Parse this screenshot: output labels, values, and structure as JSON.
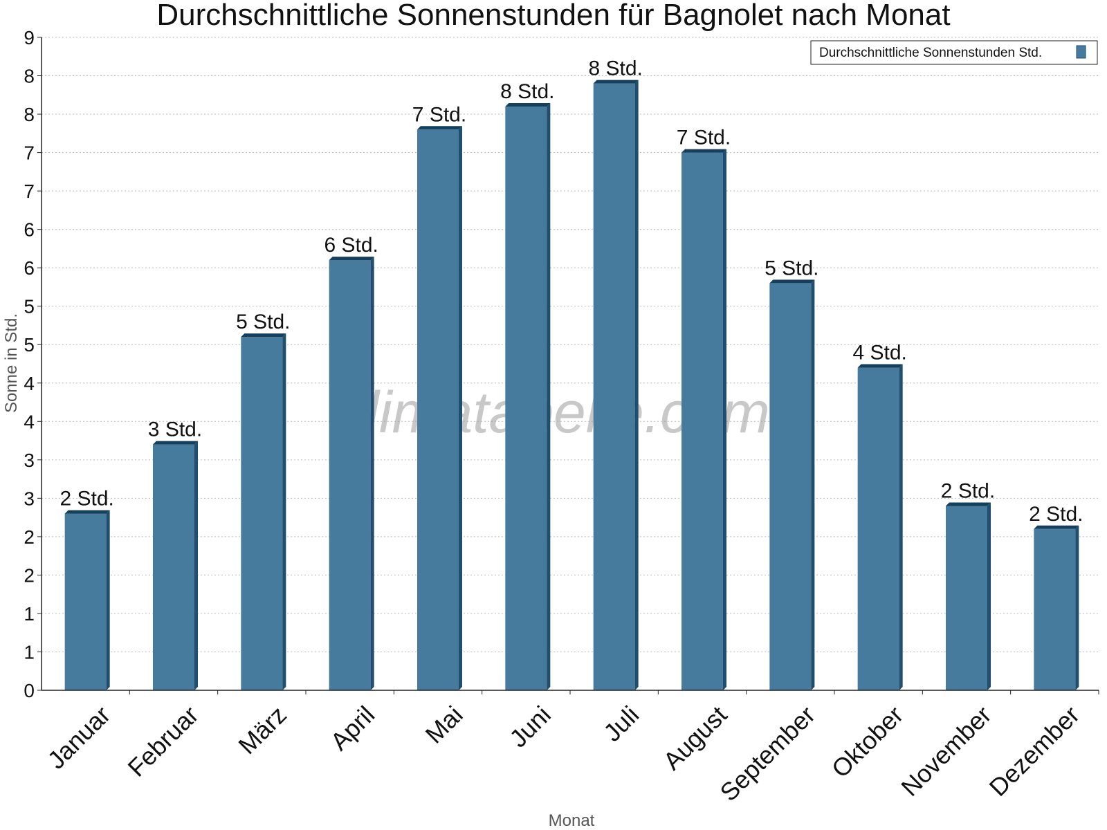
{
  "chart_data": {
    "type": "bar",
    "title": "Durchschnittliche Sonnenstunden für Bagnolet nach Monat",
    "xlabel": "Monat",
    "ylabel": "Sonne in Std.",
    "categories": [
      "Januar",
      "Februar",
      "März",
      "April",
      "Mai",
      "Juni",
      "Juli",
      "August",
      "September",
      "Oktober",
      "November",
      "Dezember"
    ],
    "series": [
      {
        "name": "Durchschnittliche Sonnenstunden Std.",
        "values": [
          2.3,
          3.2,
          4.6,
          5.6,
          7.3,
          7.6,
          7.9,
          7.0,
          5.3,
          4.2,
          2.4,
          2.1
        ],
        "labels": [
          "2 Std.",
          "3 Std.",
          "5 Std.",
          "6 Std.",
          "7 Std.",
          "8 Std.",
          "8 Std.",
          "7 Std.",
          "5 Std.",
          "4 Std.",
          "2 Std.",
          "2 Std."
        ]
      }
    ],
    "ylim": [
      0,
      8.5
    ],
    "yticks": [
      0,
      0.5,
      1,
      1.5,
      2,
      2.5,
      3,
      3.5,
      4,
      4.5,
      5,
      5.5,
      6,
      6.5,
      7,
      7.5,
      8,
      8.5
    ],
    "ytick_labels": [
      "0",
      "1",
      "1",
      "2",
      "2",
      "3",
      "3",
      "4",
      "4",
      "5",
      "5",
      "6",
      "6",
      "7",
      "7",
      "8",
      "8",
      "9"
    ],
    "grid": true,
    "legend_position": "top-right",
    "watermark": "klimatabelle.com",
    "colors": {
      "bar": "#467b9d",
      "bar_side": "#1f4e6e",
      "bar_top": "#163f5c",
      "grid": "#bbbbbb"
    }
  }
}
